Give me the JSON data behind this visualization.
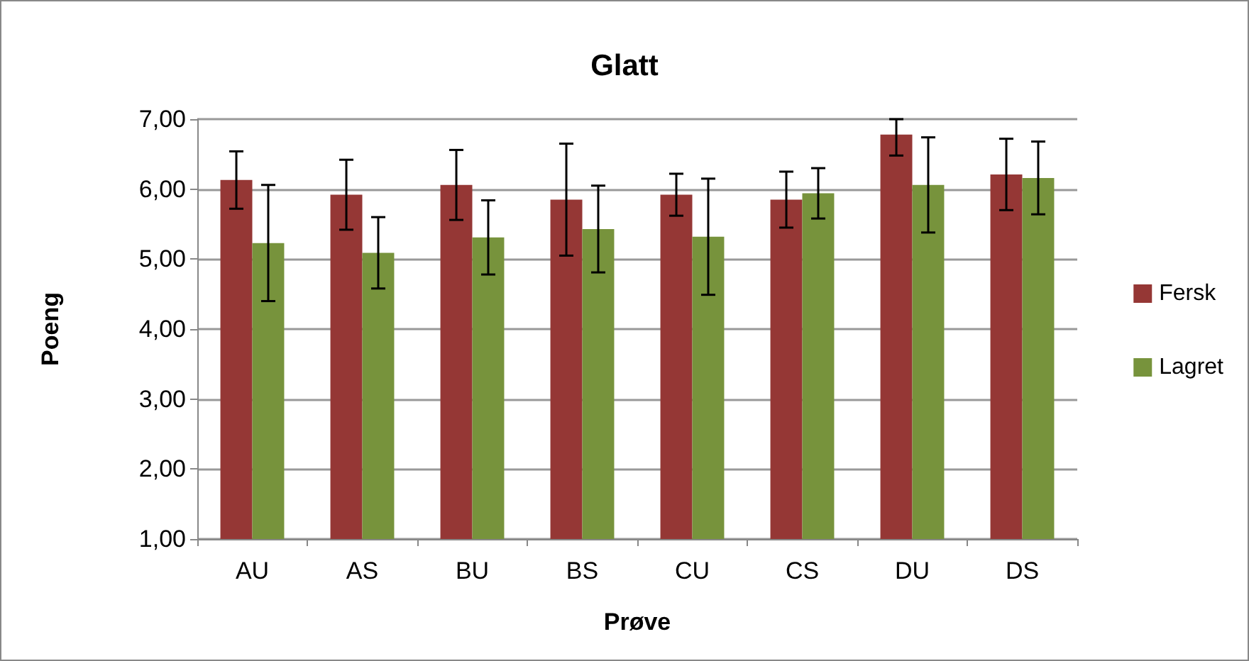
{
  "chart_data": {
    "type": "bar",
    "title": "Glatt",
    "xlabel": "Prøve",
    "ylabel": "Poeng",
    "categories": [
      "AU",
      "AS",
      "BU",
      "BS",
      "CU",
      "CS",
      "DU",
      "DS"
    ],
    "series": [
      {
        "name": "Fersk",
        "color": "#953735",
        "values": [
          6.13,
          5.92,
          6.06,
          5.85,
          5.92,
          5.85,
          6.78,
          6.21
        ],
        "errors": [
          0.41,
          0.5,
          0.5,
          0.8,
          0.3,
          0.4,
          [
            6.48,
            7.0
          ],
          0.51
        ]
      },
      {
        "name": "Lagret",
        "color": "#77933c",
        "values": [
          5.23,
          5.09,
          5.31,
          5.43,
          5.32,
          5.94,
          6.06,
          6.16
        ],
        "errors": [
          0.83,
          0.51,
          0.53,
          0.62,
          0.83,
          0.36,
          0.68,
          0.52
        ]
      }
    ],
    "ylim": [
      1,
      7
    ],
    "yticks": [
      {
        "value": 1,
        "label": "1,00"
      },
      {
        "value": 2,
        "label": "2,00"
      },
      {
        "value": 3,
        "label": "3,00"
      },
      {
        "value": 4,
        "label": "4,00"
      },
      {
        "value": 5,
        "label": "5,00"
      },
      {
        "value": 6,
        "label": "6,00"
      },
      {
        "value": 7,
        "label": "7,00"
      }
    ],
    "grid": "y",
    "legend": "right"
  }
}
